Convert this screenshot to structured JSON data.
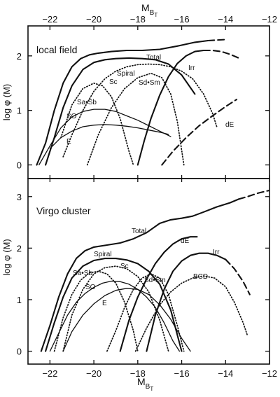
{
  "figure": {
    "top_axis_label": "M",
    "top_axis_label_sub": "B",
    "top_axis_label_subsub": "T",
    "bottom_axis_label": "M",
    "bottom_axis_label_sub": "B",
    "bottom_axis_label_subsub": "T",
    "ylabel": "log φ (M)"
  },
  "chart_data": [
    {
      "type": "line",
      "title": "local field",
      "xlabel": "M_BT",
      "ylabel": "log φ (M)",
      "xlim": [
        -23,
        -12
      ],
      "ylim": [
        -0.25,
        2.55
      ],
      "x_reversed": false,
      "xticks": [
        -22,
        -20,
        -18,
        -16,
        -14,
        -12
      ],
      "xtick_labels": [
        "−22",
        "−20",
        "−18",
        "−16",
        "−14",
        "−12"
      ],
      "yticks": [
        0,
        1,
        2
      ],
      "ytick_labels": [
        "0",
        "1",
        "2"
      ],
      "series": [
        {
          "name": "Total",
          "style": "solid",
          "weight": "thick",
          "x": [
            -22.6,
            -22.2,
            -21.8,
            -21.4,
            -21.0,
            -20.6,
            -20.2,
            -19.8,
            -19.2,
            -18.5,
            -17.8,
            -17.0,
            -16.2,
            -15.4,
            -14.8
          ],
          "y": [
            0.0,
            0.4,
            1.0,
            1.5,
            1.8,
            1.95,
            2.02,
            2.05,
            2.08,
            2.1,
            2.1,
            2.12,
            2.18,
            2.25,
            2.28
          ]
        },
        {
          "name": "Total",
          "style": "dashed",
          "weight": "thick",
          "x": [
            -14.8,
            -14.4,
            -14.0
          ],
          "y": [
            2.28,
            2.29,
            2.3
          ]
        },
        {
          "name": "Spiral",
          "style": "solid",
          "weight": "thick",
          "x": [
            -22.2,
            -21.8,
            -21.4,
            -21.0,
            -20.5,
            -20.0,
            -19.5,
            -19.0,
            -18.4,
            -17.8,
            -17.2,
            -16.6,
            -16.0,
            -15.4
          ],
          "y": [
            0.0,
            0.5,
            1.05,
            1.45,
            1.75,
            1.88,
            1.93,
            1.95,
            1.96,
            1.95,
            1.93,
            1.85,
            1.65,
            1.3
          ]
        },
        {
          "name": "Sc",
          "style": "dotted",
          "weight": "normal",
          "x": [
            -21.4,
            -21.0,
            -20.5,
            -20.0,
            -19.5,
            -19.0,
            -18.5,
            -18.0,
            -17.5,
            -17.0,
            -16.5,
            -16.0,
            -15.5,
            -15.0,
            -14.6,
            -14.4
          ],
          "y": [
            0.15,
            0.55,
            1.0,
            1.35,
            1.58,
            1.72,
            1.8,
            1.84,
            1.85,
            1.84,
            1.8,
            1.72,
            1.58,
            1.3,
            0.95,
            0.7
          ]
        },
        {
          "name": "Sa•Sb",
          "style": "dotted",
          "weight": "normal",
          "x": [
            -21.5,
            -21.0,
            -20.5,
            -20.0,
            -19.6,
            -19.2,
            -18.8,
            -18.4,
            -18.2
          ],
          "y": [
            0.5,
            1.1,
            1.4,
            1.5,
            1.45,
            1.25,
            0.85,
            0.25,
            0.0
          ]
        },
        {
          "name": "Sd•Sm",
          "style": "dotted",
          "weight": "normal",
          "x": [
            -20.3,
            -19.8,
            -19.2,
            -18.6,
            -18.0,
            -17.4,
            -16.9,
            -16.5,
            -16.2,
            -15.9
          ],
          "y": [
            0.0,
            0.55,
            1.05,
            1.4,
            1.6,
            1.68,
            1.6,
            1.3,
            0.8,
            0.0
          ]
        },
        {
          "name": "SO",
          "style": "solid",
          "weight": "normal",
          "x": [
            -22.5,
            -22.0,
            -21.5,
            -21.0,
            -20.5,
            -20.0,
            -19.5,
            -19.0,
            -18.5,
            -18.0,
            -17.5,
            -17.0,
            -16.5
          ],
          "y": [
            0.0,
            0.35,
            0.68,
            0.88,
            0.98,
            1.02,
            1.02,
            0.98,
            0.9,
            0.82,
            0.72,
            0.62,
            0.52
          ]
        },
        {
          "name": "E",
          "style": "solid",
          "weight": "normal",
          "x": [
            -22.0,
            -21.5,
            -21.0,
            -20.5,
            -20.0,
            -19.5,
            -19.0,
            -18.5,
            -18.0,
            -17.5,
            -17.0,
            -16.6
          ],
          "y": [
            0.3,
            0.5,
            0.62,
            0.7,
            0.73,
            0.74,
            0.73,
            0.71,
            0.68,
            0.64,
            0.6,
            0.56
          ]
        },
        {
          "name": "Irr",
          "style": "solid",
          "weight": "thick",
          "x": [
            -18.0,
            -17.7,
            -17.4,
            -17.0,
            -16.6,
            -16.2,
            -15.8,
            -15.4,
            -15.0
          ],
          "y": [
            0.0,
            0.45,
            0.85,
            1.28,
            1.62,
            1.86,
            2.0,
            2.08,
            2.1
          ]
        },
        {
          "name": "Irr",
          "style": "dashed",
          "weight": "thick",
          "x": [
            -15.0,
            -14.6,
            -14.2,
            -13.8,
            -13.4
          ],
          "y": [
            2.1,
            2.1,
            2.08,
            2.03,
            1.96
          ]
        },
        {
          "name": "dE",
          "style": "dashed",
          "weight": "thick",
          "x": [
            -16.9,
            -16.4,
            -15.8,
            -15.2,
            -14.6,
            -14.0,
            -13.5
          ],
          "y": [
            0.0,
            0.25,
            0.5,
            0.72,
            0.9,
            1.07,
            1.2
          ]
        }
      ]
    },
    {
      "type": "line",
      "title": "Virgo cluster",
      "xlabel": "M_BT",
      "ylabel": "log φ (M)",
      "xlim": [
        -23,
        -12
      ],
      "ylim": [
        -0.25,
        3.35
      ],
      "xticks": [
        -22,
        -20,
        -18,
        -16,
        -14,
        -12
      ],
      "xtick_labels": [
        "−22",
        "−20",
        "−18",
        "−16",
        "−14",
        "−12"
      ],
      "yticks": [
        0,
        1,
        2,
        3
      ],
      "ytick_labels": [
        "0",
        "1",
        "2",
        "3"
      ],
      "series": [
        {
          "name": "Total",
          "style": "solid",
          "weight": "thick",
          "x": [
            -22.4,
            -22.0,
            -21.6,
            -21.2,
            -20.8,
            -20.4,
            -20.0,
            -19.4,
            -18.8,
            -18.2,
            -17.6,
            -17.0,
            -16.5,
            -16.0,
            -15.5,
            -15.0,
            -14.4,
            -13.8,
            -13.4
          ],
          "y": [
            0.0,
            0.5,
            1.05,
            1.5,
            1.8,
            1.95,
            2.02,
            2.06,
            2.1,
            2.18,
            2.3,
            2.48,
            2.55,
            2.58,
            2.62,
            2.7,
            2.8,
            2.88,
            2.95
          ]
        },
        {
          "name": "Total",
          "style": "dashed",
          "weight": "thick",
          "x": [
            -13.4,
            -13.0,
            -12.5,
            -12.0
          ],
          "y": [
            2.95,
            3.0,
            3.07,
            3.12
          ]
        },
        {
          "name": "Spiral",
          "style": "solid",
          "weight": "thick",
          "x": [
            -22.2,
            -21.8,
            -21.4,
            -21.0,
            -20.5,
            -20.0,
            -19.5,
            -19.0,
            -18.5,
            -18.0,
            -17.5,
            -17.0,
            -16.5,
            -16.0
          ],
          "y": [
            0.0,
            0.55,
            1.05,
            1.42,
            1.65,
            1.76,
            1.8,
            1.8,
            1.77,
            1.7,
            1.55,
            1.3,
            0.8,
            0.0
          ]
        },
        {
          "name": "Sc",
          "style": "dotted",
          "weight": "normal",
          "x": [
            -21.4,
            -21.0,
            -20.5,
            -20.0,
            -19.5,
            -19.0,
            -18.5,
            -18.0,
            -17.5,
            -17.0,
            -16.6
          ],
          "y": [
            0.0,
            0.7,
            1.2,
            1.5,
            1.62,
            1.65,
            1.6,
            1.45,
            1.15,
            0.6,
            0.0
          ]
        },
        {
          "name": "Sa•Sb",
          "style": "dotted",
          "weight": "normal",
          "x": [
            -21.8,
            -21.4,
            -21.0,
            -20.6,
            -20.2,
            -19.8,
            -19.4,
            -19.0,
            -18.6,
            -18.2,
            -18.0
          ],
          "y": [
            0.0,
            0.65,
            1.1,
            1.38,
            1.52,
            1.55,
            1.5,
            1.32,
            0.95,
            0.4,
            0.0
          ]
        },
        {
          "name": "Sd•Sm",
          "style": "dotted",
          "weight": "normal",
          "x": [
            -19.4,
            -19.0,
            -18.6,
            -18.2,
            -17.8,
            -17.4,
            -17.0,
            -16.6,
            -16.2,
            -15.9
          ],
          "y": [
            0.0,
            0.4,
            0.85,
            1.2,
            1.42,
            1.5,
            1.42,
            1.1,
            0.5,
            0.0
          ]
        },
        {
          "name": "SO",
          "style": "solid",
          "weight": "normal",
          "x": [
            -22.0,
            -21.6,
            -21.2,
            -20.8,
            -20.4,
            -20.0,
            -19.6,
            -19.2,
            -18.8,
            -18.4,
            -18.0,
            -17.6,
            -17.2,
            -16.8,
            -16.4,
            -16.1
          ],
          "y": [
            0.0,
            0.35,
            0.7,
            0.95,
            1.12,
            1.24,
            1.32,
            1.36,
            1.35,
            1.3,
            1.2,
            1.05,
            0.85,
            0.55,
            0.2,
            0.0
          ]
        },
        {
          "name": "E",
          "style": "solid",
          "weight": "normal",
          "x": [
            -21.4,
            -21.0,
            -20.5,
            -20.0,
            -19.5,
            -19.0,
            -18.5,
            -18.0,
            -17.5,
            -17.0,
            -16.5,
            -16.0,
            -15.6
          ],
          "y": [
            0.0,
            0.38,
            0.7,
            0.92,
            1.08,
            1.18,
            1.22,
            1.2,
            1.1,
            0.9,
            0.62,
            0.25,
            0.0
          ]
        },
        {
          "name": "dE",
          "style": "solid",
          "weight": "thick",
          "x": [
            -18.8,
            -18.4,
            -18.0,
            -17.6,
            -17.2,
            -16.8,
            -16.4,
            -16.0,
            -15.6,
            -15.3
          ],
          "y": [
            0.0,
            0.6,
            1.05,
            1.4,
            1.7,
            1.92,
            2.08,
            2.18,
            2.22,
            2.22
          ]
        },
        {
          "name": "Irr",
          "style": "solid",
          "weight": "thick",
          "x": [
            -17.6,
            -17.2,
            -16.8,
            -16.4,
            -16.0,
            -15.6,
            -15.2,
            -14.8,
            -14.4,
            -14.0
          ],
          "y": [
            0.0,
            0.7,
            1.2,
            1.55,
            1.75,
            1.86,
            1.9,
            1.9,
            1.86,
            1.78
          ]
        },
        {
          "name": "Irr",
          "style": "dashed",
          "weight": "thick",
          "x": [
            -14.0,
            -13.6,
            -13.2,
            -12.9
          ],
          "y": [
            1.78,
            1.6,
            1.35,
            1.1
          ]
        },
        {
          "name": "BCD",
          "style": "dotted",
          "weight": "normal",
          "x": [
            -18.1,
            -17.6,
            -17.0,
            -16.5,
            -16.0,
            -15.5,
            -15.0,
            -14.5,
            -14.0,
            -13.6,
            -13.2,
            -13.0
          ],
          "y": [
            0.0,
            0.45,
            0.9,
            1.15,
            1.32,
            1.42,
            1.46,
            1.42,
            1.25,
            0.95,
            0.55,
            0.3
          ]
        }
      ]
    }
  ]
}
